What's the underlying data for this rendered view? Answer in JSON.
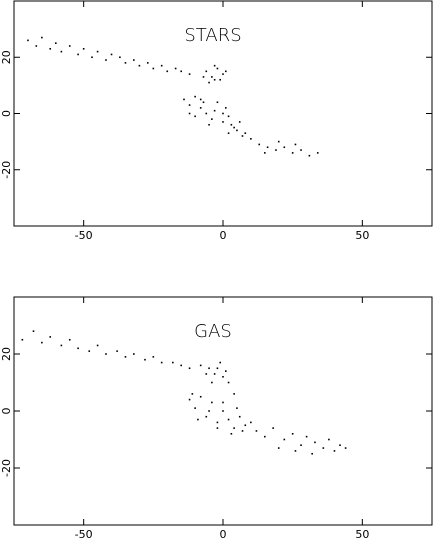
{
  "chart_data": [
    {
      "type": "scatter",
      "title": "STARS",
      "series": [
        {
          "color": "#000000",
          "x": [
            -70,
            -67,
            -65,
            -62,
            -60,
            -58,
            -55,
            -52,
            -50,
            -47,
            -45,
            -42,
            -40,
            -37,
            -35,
            -32,
            -30,
            -27,
            -25,
            -22,
            -20,
            -17,
            -15,
            -12,
            -6,
            -4,
            -2,
            -1,
            -5,
            0,
            -3,
            1,
            -7,
            -3,
            -14,
            -12,
            -10,
            -8,
            -6,
            -4,
            -2,
            0,
            2,
            4,
            6,
            8,
            -10,
            -7,
            -3,
            1,
            3,
            5,
            -12,
            0,
            -5,
            7,
            2,
            -8,
            10,
            13,
            16,
            19,
            22,
            25,
            28,
            31,
            34,
            20,
            26,
            15
          ],
          "y": [
            26,
            24,
            27,
            23,
            25,
            22,
            24,
            21,
            23,
            20,
            22,
            19,
            21,
            20,
            18,
            19,
            17,
            18,
            16,
            17,
            15,
            16,
            15,
            14,
            15,
            13,
            16,
            12,
            11,
            14,
            17,
            15,
            13,
            12,
            5,
            3,
            6,
            2,
            0,
            -2,
            4,
            -3,
            -1,
            -5,
            -3,
            -7,
            -1,
            4,
            1,
            2,
            -4,
            -6,
            0,
            0,
            -4,
            -8,
            -7,
            5,
            -9,
            -11,
            -12,
            -13,
            -12,
            -14,
            -13,
            -15,
            -14,
            -10,
            -11,
            -14
          ]
        }
      ],
      "xlim": [
        -75,
        75
      ],
      "ylim": [
        -40,
        40
      ],
      "xticks": [
        -50,
        0,
        50
      ],
      "yticks": [
        -20,
        0,
        20
      ]
    },
    {
      "type": "scatter",
      "title": "GAS",
      "series": [
        {
          "color": "#000000",
          "x": [
            -72,
            -68,
            -65,
            -62,
            -58,
            -55,
            -52,
            -48,
            -45,
            -42,
            -38,
            -35,
            -32,
            -28,
            -25,
            -22,
            -18,
            -15,
            -12,
            -8,
            -5,
            -3,
            -1,
            0,
            -4,
            -2,
            1,
            -6,
            2,
            4,
            -12,
            -10,
            -8,
            -6,
            -4,
            -2,
            0,
            2,
            4,
            6,
            8,
            -9,
            -5,
            0,
            5,
            10,
            -11,
            3,
            7,
            -2,
            12,
            15,
            18,
            22,
            25,
            28,
            30,
            33,
            36,
            38,
            40,
            42,
            20,
            26,
            32,
            44
          ],
          "y": [
            25,
            28,
            24,
            26,
            23,
            25,
            22,
            21,
            23,
            20,
            21,
            19,
            20,
            18,
            19,
            17,
            17,
            16,
            15,
            16,
            15,
            13,
            17,
            12,
            10,
            15,
            14,
            13,
            10,
            6,
            4,
            1,
            5,
            -2,
            3,
            -4,
            0,
            -3,
            -6,
            -2,
            -5,
            -3,
            0,
            3,
            1,
            -4,
            6,
            -8,
            -7,
            -6,
            -7,
            -9,
            -6,
            -10,
            -8,
            -12,
            -9,
            -11,
            -13,
            -10,
            -14,
            -12,
            -13,
            -14,
            -15,
            -13
          ]
        }
      ],
      "xlim": [
        -75,
        75
      ],
      "ylim": [
        -40,
        40
      ],
      "xticks": [
        -50,
        0,
        50
      ],
      "yticks": [
        -20,
        0,
        20
      ]
    }
  ]
}
